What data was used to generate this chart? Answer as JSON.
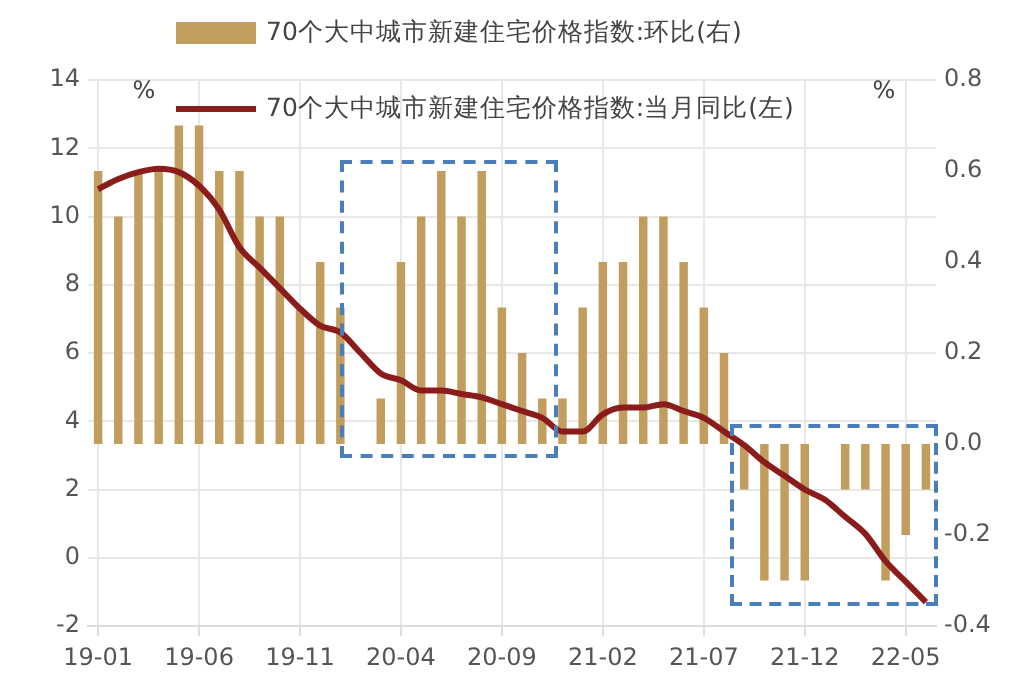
{
  "chart_data": {
    "type": "bar",
    "legend": "top",
    "grid": true,
    "ylabel": "%",
    "y2label": "%",
    "categories": [
      "19-01",
      null,
      null,
      null,
      null,
      "19-06",
      null,
      null,
      null,
      null,
      "19-11",
      null,
      null,
      null,
      null,
      "20-04",
      null,
      null,
      null,
      null,
      "20-09",
      null,
      null,
      null,
      null,
      "21-02",
      null,
      null,
      null,
      null,
      "21-07",
      null,
      null,
      null,
      null,
      "21-12",
      null,
      null,
      null,
      null,
      "22-05",
      null
    ],
    "ylim": [
      -2,
      14
    ],
    "yticks": [
      -2,
      0,
      2,
      4,
      6,
      8,
      10,
      12,
      14
    ],
    "y2lim": [
      -0.4,
      0.8
    ],
    "y2ticks": [
      -0.4,
      -0.2,
      {
        "value": 0,
        "label": "0.0"
      },
      0.2,
      0.4,
      0.6,
      0.8
    ],
    "series": [
      {
        "name": "70个大中城市新建住宅价格指数:环比(右)",
        "axis": "y2",
        "color": "#c19d5e",
        "values": [
          0.6,
          0.5,
          0.6,
          0.6,
          0.7,
          0.7,
          0.6,
          0.6,
          0.5,
          0.5,
          0.3,
          0.4,
          0.3,
          0,
          0.1,
          0.4,
          0.5,
          0.6,
          0.5,
          0.6,
          0.3,
          0.2,
          0.1,
          0.1,
          0.3,
          0.4,
          0.4,
          0.5,
          0.5,
          0.4,
          0.3,
          0.2,
          -0.1,
          -0.3,
          -0.3,
          -0.3,
          0,
          -0.1,
          -0.1,
          -0.3,
          -0.2,
          -0.1
        ]
      },
      {
        "name": "70个大中城市新建住宅价格指数:当月同比(左)",
        "type": "line",
        "axis": "y",
        "color": "#8b1c1c",
        "values": [
          10.8,
          11.1,
          11.3,
          11.4,
          11.3,
          10.9,
          10.2,
          9.1,
          8.5,
          7.9,
          7.3,
          6.8,
          6.6,
          6.0,
          5.4,
          5.2,
          4.9,
          4.9,
          4.8,
          4.7,
          4.5,
          4.3,
          4.1,
          3.7,
          3.7,
          4.2,
          4.4,
          4.4,
          4.5,
          4.3,
          4.1,
          3.7,
          3.3,
          2.8,
          2.4,
          2.0,
          1.7,
          1.2,
          0.7,
          -0.1,
          -0.7,
          -1.3
        ]
      }
    ]
  }
}
